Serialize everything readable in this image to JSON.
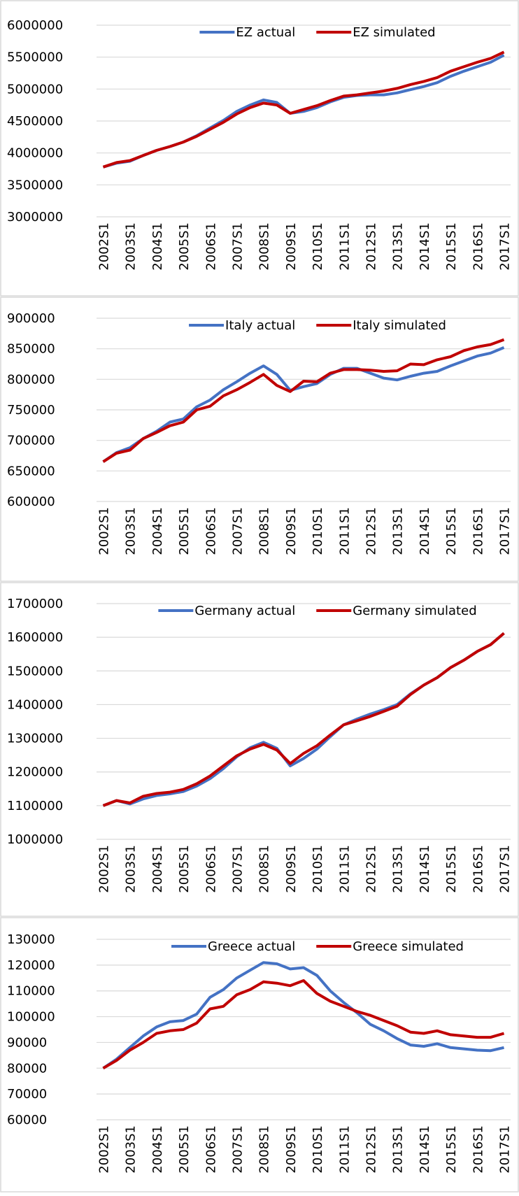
{
  "chart_data": [
    {
      "type": "line",
      "legend": "top",
      "grid": true,
      "categories": [
        "2002S1",
        null,
        "2003S1",
        null,
        "2004S1",
        null,
        "2005S1",
        null,
        "2006S1",
        null,
        "2007S1",
        null,
        "2008S1",
        null,
        "2009S1",
        null,
        "2010S1",
        null,
        "2011S1",
        null,
        "2012S1",
        null,
        "2013S1",
        null,
        "2014S1",
        null,
        "2015S1",
        null,
        "2016S1",
        null,
        "2017S1"
      ],
      "ylim": [
        3000000,
        6000000
      ],
      "yticks": [
        3000000,
        3500000,
        4000000,
        4500000,
        5000000,
        5500000,
        6000000
      ],
      "series": [
        {
          "name": "EZ actual",
          "color": "#4472c4",
          "values": [
            3780000,
            3840000,
            3870000,
            3960000,
            4040000,
            4100000,
            4170000,
            4270000,
            4390000,
            4510000,
            4650000,
            4750000,
            4830000,
            4790000,
            4620000,
            4650000,
            4710000,
            4800000,
            4870000,
            4900000,
            4910000,
            4910000,
            4940000,
            4990000,
            5040000,
            5100000,
            5200000,
            5280000,
            5350000,
            5420000,
            5530000
          ]
        },
        {
          "name": "EZ simulated",
          "color": "#c00000",
          "values": [
            3780000,
            3850000,
            3880000,
            3960000,
            4040000,
            4100000,
            4170000,
            4260000,
            4370000,
            4480000,
            4610000,
            4710000,
            4780000,
            4750000,
            4620000,
            4680000,
            4740000,
            4820000,
            4890000,
            4910000,
            4940000,
            4970000,
            5010000,
            5070000,
            5120000,
            5180000,
            5280000,
            5350000,
            5420000,
            5480000,
            5580000
          ]
        }
      ]
    },
    {
      "type": "line",
      "legend": "top",
      "grid": true,
      "categories": [
        "2002S1",
        null,
        "2003S1",
        null,
        "2004S1",
        null,
        "2005S1",
        null,
        "2006S1",
        null,
        "2007S1",
        null,
        "2008S1",
        null,
        "2009S1",
        null,
        "2010S1",
        null,
        "2011S1",
        null,
        "2012S1",
        null,
        "2013S1",
        null,
        "2014S1",
        null,
        "2015S1",
        null,
        "2016S1",
        null,
        "2017S1"
      ],
      "ylim": [
        600000,
        900000
      ],
      "yticks": [
        600000,
        650000,
        700000,
        750000,
        800000,
        850000,
        900000
      ],
      "series": [
        {
          "name": "Italy actual",
          "color": "#4472c4",
          "values": [
            665000,
            680000,
            688000,
            703000,
            715000,
            730000,
            735000,
            755000,
            766000,
            783000,
            796000,
            810000,
            822000,
            808000,
            782000,
            788000,
            793000,
            808000,
            818000,
            818000,
            810000,
            802000,
            799000,
            805000,
            810000,
            813000,
            822000,
            830000,
            838000,
            843000,
            852000
          ]
        },
        {
          "name": "Italy simulated",
          "color": "#c00000",
          "values": [
            665000,
            679000,
            684000,
            703000,
            713000,
            724000,
            730000,
            750000,
            756000,
            773000,
            783000,
            795000,
            808000,
            790000,
            780000,
            797000,
            796000,
            810000,
            816000,
            816000,
            815000,
            813000,
            814000,
            825000,
            824000,
            832000,
            837000,
            847000,
            853000,
            857000,
            865000
          ]
        }
      ]
    },
    {
      "type": "line",
      "legend": "top",
      "grid": true,
      "categories": [
        "2002S1",
        null,
        "2003S1",
        null,
        "2004S1",
        null,
        "2005S1",
        null,
        "2006S1",
        null,
        "2007S1",
        null,
        "2008S1",
        null,
        "2009S1",
        null,
        "2010S1",
        null,
        "2011S1",
        null,
        "2012S1",
        null,
        "2013S1",
        null,
        "2014S1",
        null,
        "2015S1",
        null,
        "2016S1",
        null,
        "2017S1"
      ],
      "ylim": [
        1000000,
        1700000
      ],
      "yticks": [
        1000000,
        1100000,
        1200000,
        1300000,
        1400000,
        1500000,
        1600000,
        1700000
      ],
      "series": [
        {
          "name": "Germany actual",
          "color": "#4472c4",
          "values": [
            1100000,
            1115000,
            1105000,
            1120000,
            1130000,
            1135000,
            1142000,
            1158000,
            1180000,
            1210000,
            1245000,
            1272000,
            1288000,
            1270000,
            1218000,
            1240000,
            1268000,
            1305000,
            1340000,
            1357000,
            1372000,
            1385000,
            1400000,
            1432000,
            1458000,
            1480000,
            1510000,
            1532000,
            1558000,
            1578000,
            1612000
          ]
        },
        {
          "name": "Germany simulated",
          "color": "#c00000",
          "values": [
            1100000,
            1115000,
            1108000,
            1128000,
            1136000,
            1140000,
            1148000,
            1165000,
            1188000,
            1218000,
            1248000,
            1268000,
            1282000,
            1265000,
            1225000,
            1255000,
            1278000,
            1310000,
            1340000,
            1352000,
            1365000,
            1380000,
            1395000,
            1430000,
            1458000,
            1480000,
            1510000,
            1532000,
            1558000,
            1578000,
            1612000
          ]
        }
      ]
    },
    {
      "type": "line",
      "legend": "top",
      "grid": true,
      "categories": [
        "2002S1",
        null,
        "2003S1",
        null,
        "2004S1",
        null,
        "2005S1",
        null,
        "2006S1",
        null,
        "2007S1",
        null,
        "2008S1",
        null,
        "2009S1",
        null,
        "2010S1",
        null,
        "2011S1",
        null,
        "2012S1",
        null,
        "2013S1",
        null,
        "2014S1",
        null,
        "2015S1",
        null,
        "2016S1",
        null,
        "2017S1"
      ],
      "ylim": [
        60000,
        130000
      ],
      "yticks": [
        60000,
        70000,
        80000,
        90000,
        100000,
        110000,
        120000,
        130000
      ],
      "series": [
        {
          "name": "Greece actual",
          "color": "#4472c4",
          "values": [
            80000,
            83500,
            88000,
            92500,
            96000,
            98000,
            98500,
            101000,
            107500,
            110500,
            115000,
            118000,
            121000,
            120500,
            118500,
            119000,
            116000,
            110000,
            105500,
            101500,
            97000,
            94500,
            91500,
            89000,
            88500,
            89500,
            88000,
            87500,
            87000,
            86800,
            88000
          ]
        },
        {
          "name": "Greece simulated",
          "color": "#c00000",
          "values": [
            80000,
            83000,
            87000,
            90000,
            93500,
            94500,
            95000,
            97500,
            103000,
            104000,
            108500,
            110500,
            113500,
            113000,
            112000,
            114000,
            109000,
            106000,
            104000,
            102000,
            100500,
            98500,
            96500,
            94000,
            93500,
            94500,
            93000,
            92500,
            92000,
            92000,
            93500
          ]
        }
      ]
    }
  ]
}
